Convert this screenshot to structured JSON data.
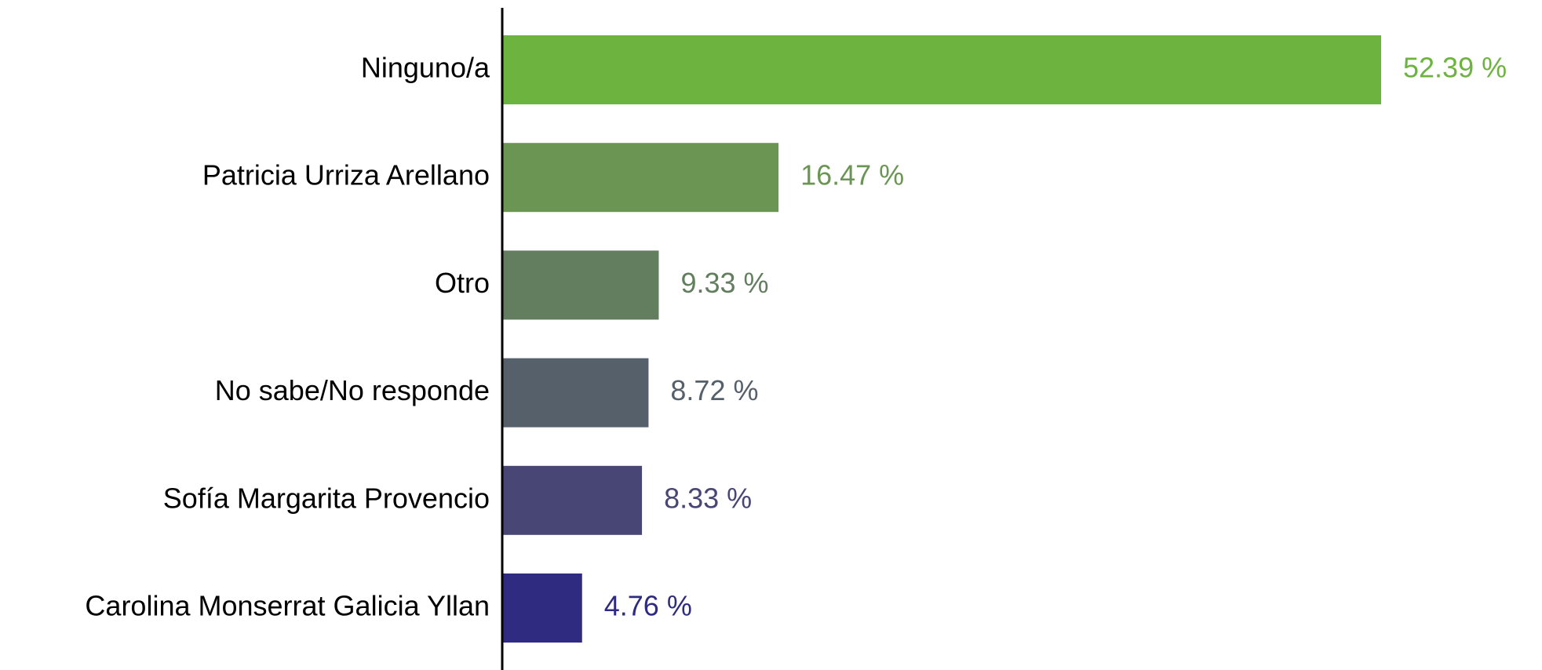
{
  "chart_data": {
    "type": "bar",
    "orientation": "horizontal",
    "categories": [
      "Ninguno/a",
      "Patricia Urriza Arellano",
      "Otro",
      "No sabe/No responde",
      "Sofía Margarita Provencio",
      "Carolina Monserrat Galicia Yllan"
    ],
    "values": [
      52.39,
      16.47,
      9.33,
      8.72,
      8.33,
      4.76
    ],
    "value_labels": [
      "52.39 %",
      "16.47 %",
      "9.33 %",
      "8.72 %",
      "8.33 %",
      "4.76 %"
    ],
    "colors": [
      "#6db33f",
      "#6a9552",
      "#627e5e",
      "#56606a",
      "#484675",
      "#2e2b80"
    ]
  }
}
